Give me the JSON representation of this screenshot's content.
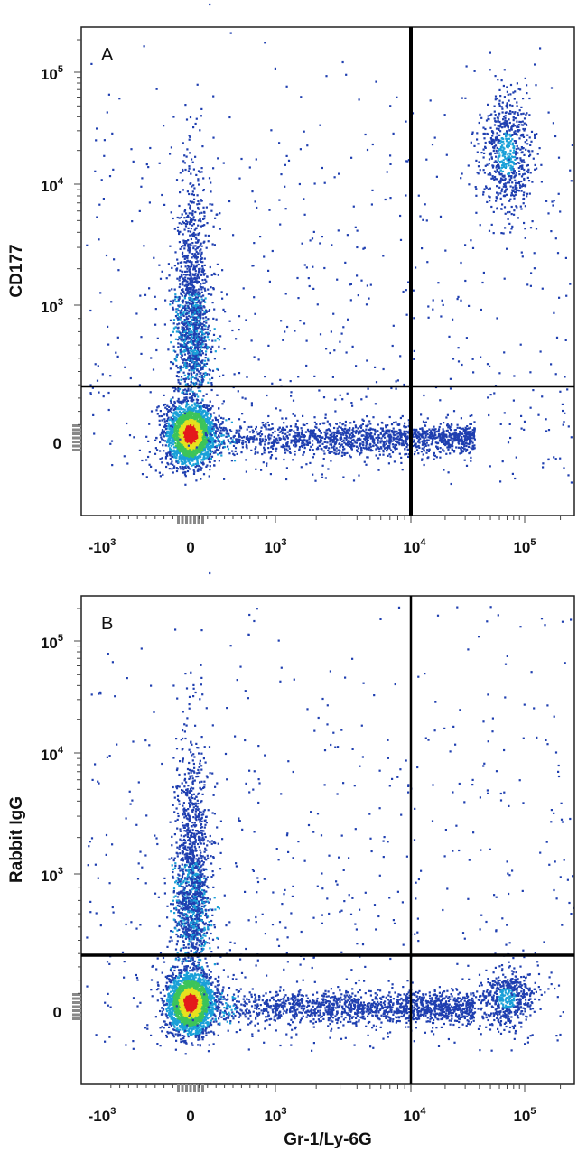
{
  "chart_data": [
    {
      "type": "scatter",
      "panel_label": "A",
      "ylabel": "CD177",
      "xlabel": "",
      "x_scale": "biexponential",
      "y_scale": "biexponential",
      "x_ticks": [
        {
          "base": "-10",
          "exp": "3",
          "value": -1000
        },
        {
          "base": "0",
          "exp": "",
          "value": 0
        },
        {
          "base": "10",
          "exp": "3",
          "value": 1000
        },
        {
          "base": "10",
          "exp": "4",
          "value": 10000
        },
        {
          "base": "10",
          "exp": "5",
          "value": 100000
        }
      ],
      "y_ticks": [
        {
          "base": "0",
          "exp": "",
          "value": 0
        },
        {
          "base": "10",
          "exp": "3",
          "value": 1000
        },
        {
          "base": "10",
          "exp": "4",
          "value": 10000
        },
        {
          "base": "10",
          "exp": "5",
          "value": 100000
        }
      ],
      "quadrant_gates": {
        "x": 10000,
        "y": 250
      },
      "populations": [
        {
          "name": "",
          "x_center": 0,
          "y_center": 0,
          "relative_density": "very high"
        },
        {
          "name": "",
          "x_center": 0,
          "y_center": 700,
          "relative_density": "medium"
        },
        {
          "name": "",
          "x_center": 3000,
          "y_center": 0,
          "relative_density": "medium"
        },
        {
          "name": "",
          "x_center": 70000,
          "y_center": 20000,
          "relative_density": "medium"
        }
      ]
    },
    {
      "type": "scatter",
      "panel_label": "B",
      "ylabel": "Rabbit IgG",
      "xlabel": "Gr-1/Ly-6G",
      "x_scale": "biexponential",
      "y_scale": "biexponential",
      "x_ticks": [
        {
          "base": "-10",
          "exp": "3",
          "value": -1000
        },
        {
          "base": "0",
          "exp": "",
          "value": 0
        },
        {
          "base": "10",
          "exp": "3",
          "value": 1000
        },
        {
          "base": "10",
          "exp": "4",
          "value": 10000
        },
        {
          "base": "10",
          "exp": "5",
          "value": 100000
        }
      ],
      "y_ticks": [
        {
          "base": "0",
          "exp": "",
          "value": 0
        },
        {
          "base": "10",
          "exp": "3",
          "value": 1000
        },
        {
          "base": "10",
          "exp": "4",
          "value": 10000
        },
        {
          "base": "10",
          "exp": "5",
          "value": 100000
        }
      ],
      "quadrant_gates": {
        "x": 10000,
        "y": 250
      },
      "populations": [
        {
          "name": "",
          "x_center": 0,
          "y_center": 0,
          "relative_density": "very high"
        },
        {
          "name": "",
          "x_center": 0,
          "y_center": 700,
          "relative_density": "medium"
        },
        {
          "name": "",
          "x_center": 3000,
          "y_center": 0,
          "relative_density": "medium"
        },
        {
          "name": "",
          "x_center": 70000,
          "y_center": 0,
          "relative_density": "medium"
        }
      ]
    }
  ],
  "colors": {
    "density_low": "#1f3fb0",
    "density_mid_low": "#1aa0d8",
    "density_mid": "#3cc45a",
    "density_mid_high": "#e6e21e",
    "density_high": "#e41a1c",
    "gate_line": "#000000"
  }
}
